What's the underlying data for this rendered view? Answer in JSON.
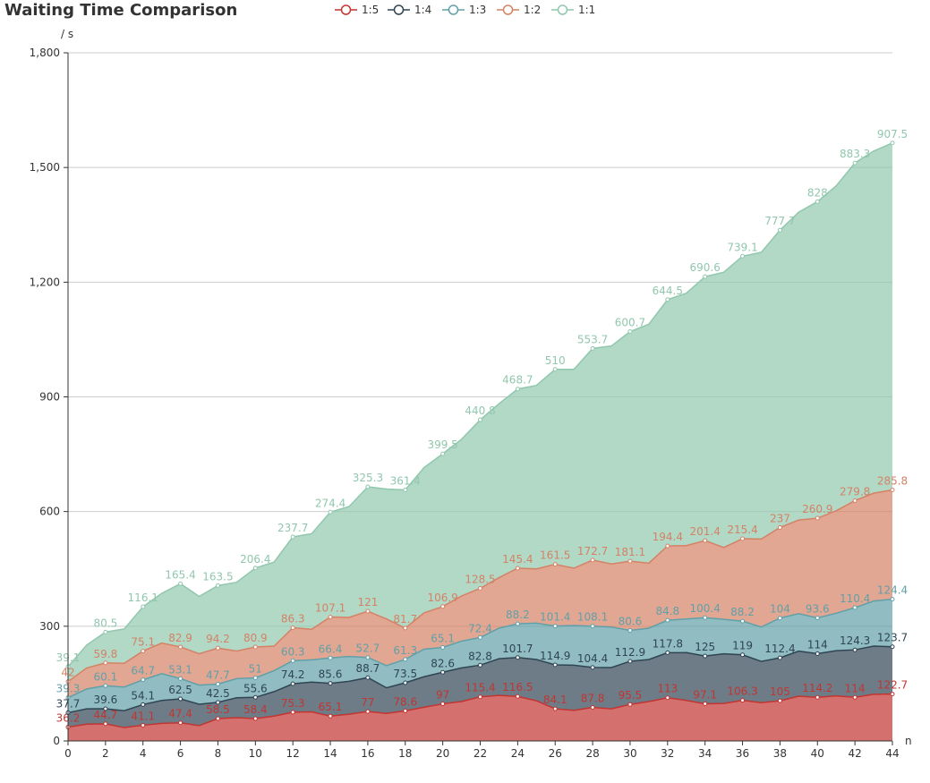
{
  "chart_data": {
    "type": "area",
    "title": "Waiting Time Comparison",
    "ylabel": "/ s",
    "xlabel": "n",
    "ylim": [
      0,
      1800
    ],
    "y_ticks": [
      "0",
      "300",
      "600",
      "900",
      "1,200",
      "1,500",
      "1,800"
    ],
    "x_ticks": [
      "0",
      "2",
      "4",
      "6",
      "8",
      "10",
      "12",
      "14",
      "16",
      "18",
      "20",
      "22",
      "24",
      "26",
      "28",
      "30",
      "32",
      "34",
      "36",
      "38",
      "40",
      "42",
      "44"
    ],
    "xlim": [
      0,
      44
    ],
    "stacked": true,
    "grid": "horizontal",
    "legend_position": "top-center",
    "x": [
      0,
      1,
      2,
      3,
      4,
      5,
      6,
      7,
      8,
      9,
      10,
      11,
      12,
      13,
      14,
      15,
      16,
      17,
      18,
      19,
      20,
      21,
      22,
      23,
      24,
      25,
      26,
      27,
      28,
      29,
      30,
      31,
      32,
      33,
      34,
      35,
      36,
      37,
      38,
      39,
      40,
      41,
      42,
      43,
      44
    ],
    "series": [
      {
        "name": "1:5",
        "color": "#c23531",
        "values": [
          36.2,
          44,
          44.7,
          35,
          41.1,
          46,
          47.4,
          40,
          58.5,
          61,
          58.4,
          65,
          75.3,
          76,
          65.1,
          70,
          77,
          72,
          78.6,
          88,
          97,
          103,
          115.4,
          119,
          116.5,
          105,
          84.1,
          80,
          87.8,
          84,
          95.5,
          103,
          113,
          106,
          97.1,
          98,
          106.3,
          100,
          105,
          117,
          114.2,
          118,
          114,
          122,
          122.7
        ]
      },
      {
        "name": "1:4",
        "color": "#2f4554",
        "values": [
          37.7,
          40,
          39.6,
          44,
          54.1,
          60,
          62.5,
          56,
          42.5,
          52,
          55.6,
          64,
          74.2,
          78,
          85.6,
          86,
          88.7,
          67,
          73.5,
          80,
          82.6,
          88,
          82.8,
          96,
          101.7,
          108,
          114.9,
          118,
          104.4,
          108,
          112.9,
          110,
          117.8,
          125,
          125,
          130,
          119,
          108,
          112.4,
          118,
          114,
          118,
          124.3,
          126,
          123.7
        ]
      },
      {
        "name": "1:3",
        "color": "#61a0a8",
        "values": [
          39.3,
          52,
          60.1,
          62,
          64.7,
          70,
          53.1,
          50,
          47.7,
          50,
          51,
          55,
          60.3,
          58,
          66.4,
          65,
          52.7,
          58,
          61.3,
          72,
          65.1,
          70,
          72.4,
          80,
          88.2,
          95,
          101.4,
          104,
          108.1,
          106,
          80.6,
          82,
          84.8,
          88,
          100.4,
          90,
          88.2,
          90,
          104,
          98,
          93.6,
          98,
          110.4,
          118,
          124.4
        ]
      },
      {
        "name": "1:2",
        "color": "#d48265",
        "values": [
          42,
          55,
          59.8,
          62,
          75.1,
          80,
          82.9,
          82,
          94.2,
          72,
          80.9,
          64,
          86.3,
          80,
          107.1,
          102,
          121,
          122,
          81.7,
          95,
          106.9,
          118,
          128.5,
          132,
          145.4,
          142,
          161.5,
          150,
          172.7,
          165,
          181.1,
          170,
          194.4,
          192,
          201.4,
          188,
          215.4,
          230,
          237,
          245,
          260.9,
          268,
          279.8,
          282,
          285.8
        ]
      },
      {
        "name": "1:1",
        "color": "#91c7ae",
        "values": [
          39.1,
          60,
          80.5,
          90,
          116.1,
          130,
          165.4,
          150,
          163.5,
          180,
          206.4,
          220,
          237.7,
          250,
          274.4,
          290,
          325.3,
          340,
          361.4,
          380,
          399.5,
          410,
          440.8,
          455,
          468.7,
          480,
          510,
          520,
          553.7,
          570,
          600.7,
          625,
          644.5,
          660,
          690.6,
          720,
          739.1,
          750,
          777.7,
          805,
          828,
          850,
          883.3,
          895,
          907.5
        ]
      }
    ]
  }
}
